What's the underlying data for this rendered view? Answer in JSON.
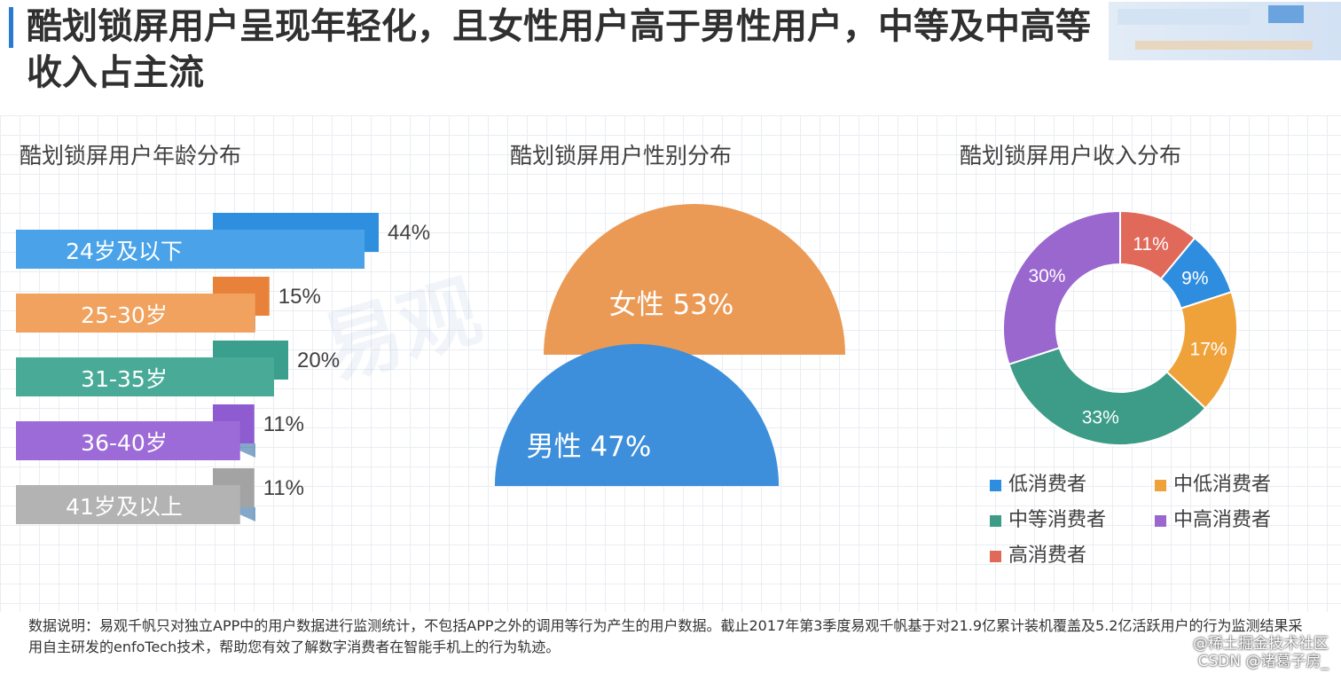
{
  "header": {
    "title": "酷划锁屏用户呈现年轻化，且女性用户高于男性用户，中等及中高等收入占主流"
  },
  "sections": {
    "age_title": "酷划锁屏用户年龄分布",
    "gender_title": "酷划锁屏用户性别分布",
    "income_title": "酷划锁屏用户收入分布"
  },
  "chart_data": [
    {
      "type": "bar",
      "title": "酷划锁屏用户年龄分布",
      "categories": [
        "24岁及以下",
        "25-30岁",
        "31-35岁",
        "36-40岁",
        "41岁及以上"
      ],
      "values": [
        44,
        15,
        20,
        11,
        11
      ],
      "labels": [
        "44%",
        "15%",
        "20%",
        "11%",
        "11%"
      ],
      "colors": [
        "#2f8fdf",
        "#e8823a",
        "#3a9f8c",
        "#8e5bd0",
        "#a3a3a3"
      ],
      "colors_front": [
        "#4aa3e8",
        "#f0a25e",
        "#49ab97",
        "#9d6bd8",
        "#b3b3b3"
      ]
    },
    {
      "type": "pie",
      "title": "酷划锁屏用户性别分布",
      "categories": [
        "女性",
        "男性"
      ],
      "values": [
        53,
        47
      ],
      "labels": [
        "53%",
        "47%"
      ],
      "colors": [
        "#eb9a55",
        "#3d8fdb"
      ]
    },
    {
      "type": "pie",
      "title": "酷划锁屏用户收入分布",
      "categories": [
        "低消费者",
        "中低消费者",
        "中等消费者",
        "中高消费者",
        "高消费者"
      ],
      "values": [
        9,
        17,
        33,
        30,
        11
      ],
      "labels": [
        "9%",
        "17%",
        "33%",
        "30%",
        "11%"
      ],
      "colors": [
        "#2f8de0",
        "#f0a23a",
        "#3c9c87",
        "#9a67cf",
        "#e0695a"
      ]
    }
  ],
  "footnote": "数据说明：易观千帆只对独立APP中的用户数据进行监测统计，不包括APP之外的调用等行为产生的用户数据。截止2017年第3季度易观千帆基于对21.9亿累计装机覆盖及5.2亿活跃用户的行为监测结果采用自主研发的enfoTech技术，帮助您有效了解数字消费者在智能手机上的行为轨迹。",
  "watermark": {
    "line1": "@稀土掘金技术社区",
    "line2": "CSDN @诸葛子房_"
  }
}
